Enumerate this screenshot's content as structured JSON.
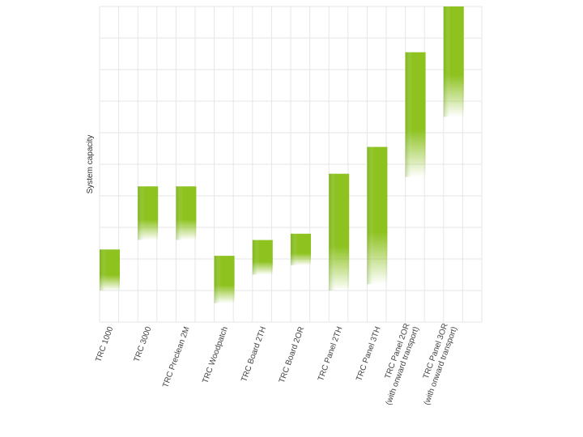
{
  "chart_data": {
    "type": "bar",
    "title": "",
    "xlabel": "",
    "ylabel": "System capacity",
    "grid": true,
    "legend": "none",
    "ylim": [
      0,
      10
    ],
    "bar_color": "#8dc21f",
    "categories": [
      [
        "TRC 1000"
      ],
      [
        "TRC 3000"
      ],
      [
        "TRC Preclean 2M"
      ],
      [
        "TRC Woodpatch"
      ],
      [
        "TRC Board 2TH"
      ],
      [
        "TRC Board 2OR"
      ],
      [
        "TRC Panel 2TH"
      ],
      [
        "TRC Panel 3TH"
      ],
      [
        "TRC Panel 2OR",
        "(with onward transport)"
      ],
      [
        "TRC Panel 3OR",
        "(with onward transport)"
      ]
    ],
    "ranges": [
      {
        "low": 1.0,
        "high": 2.3
      },
      {
        "low": 2.6,
        "high": 4.3
      },
      {
        "low": 2.6,
        "high": 4.3
      },
      {
        "low": 0.6,
        "high": 2.1
      },
      {
        "low": 1.5,
        "high": 2.6
      },
      {
        "low": 1.8,
        "high": 2.8
      },
      {
        "low": 1.0,
        "high": 4.7
      },
      {
        "low": 1.2,
        "high": 5.55
      },
      {
        "low": 4.6,
        "high": 8.55
      },
      {
        "low": 6.5,
        "high": 10.0
      }
    ]
  }
}
